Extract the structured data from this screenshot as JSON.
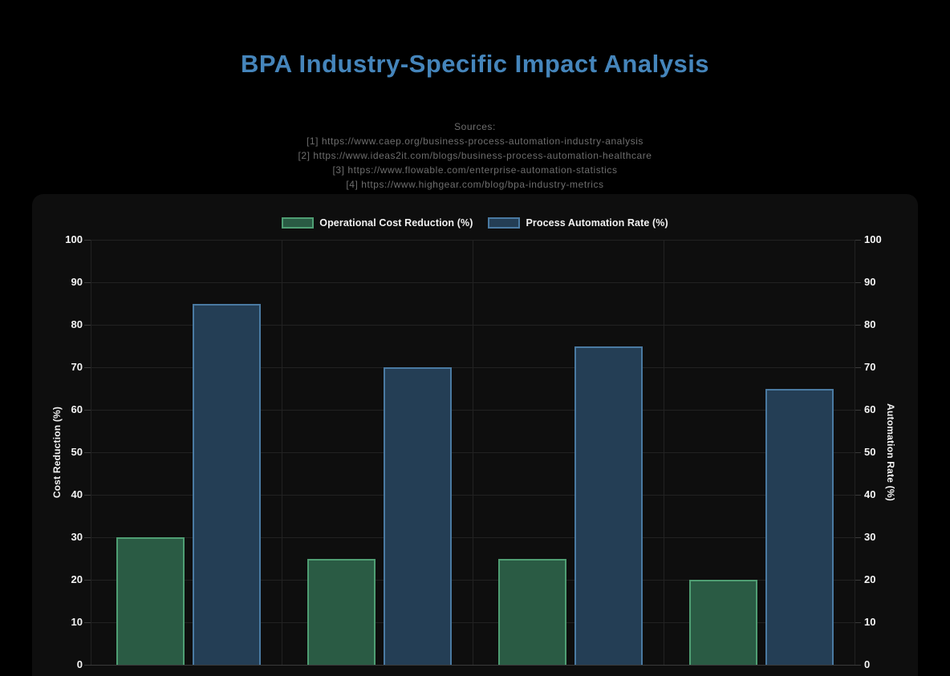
{
  "title": "BPA Industry-Specific Impact Analysis",
  "sources": {
    "heading": "Sources:",
    "items": [
      "[1] https://www.caep.org/business-process-automation-industry-analysis",
      "[2] https://www.ideas2it.com/blogs/business-process-automation-healthcare",
      "[3] https://www.flowable.com/enterprise-automation-statistics",
      "[4] https://www.highgear.com/blog/bpa-industry-metrics"
    ]
  },
  "chart_data": {
    "type": "bar",
    "categories": [
      "",
      "",
      "",
      ""
    ],
    "categories_note": "category tick labels are cropped out of view below the chart",
    "series": [
      {
        "name": "Operational Cost Reduction (%)",
        "values": [
          30,
          25,
          25,
          20
        ],
        "fill": "#2a5b44",
        "border": "#4f9e73"
      },
      {
        "name": "Process Automation Rate (%)",
        "values": [
          85,
          70,
          75,
          65
        ],
        "fill": "#243e55",
        "border": "#4a7aa2"
      }
    ],
    "ylabel_left": "Cost Reduction (%)",
    "ylabel_right": "Automation Rate (%)",
    "ylim": [
      0,
      100
    ],
    "ytick_step": 10,
    "yticks": [
      0,
      10,
      20,
      30,
      40,
      50,
      60,
      70,
      80,
      90,
      100
    ],
    "grid": true,
    "legend_position": "top"
  },
  "colors": {
    "page_bg": "#000000",
    "card_bg": "#0e0e0e",
    "title": "#4585bb",
    "source_text": "#6e6e6e",
    "axis_text": "#f5f5f5",
    "gridline": "#222222"
  }
}
